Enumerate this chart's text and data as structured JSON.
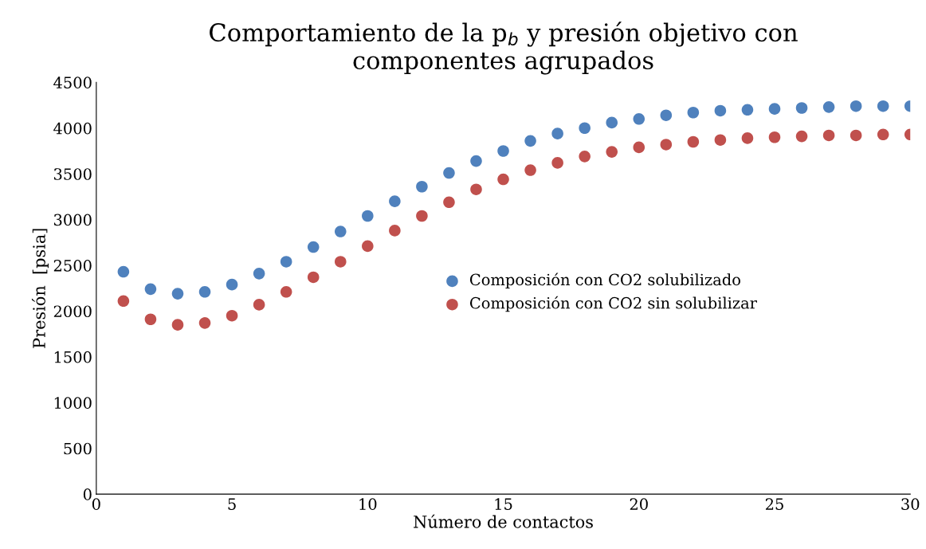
{
  "chart_data": {
    "type": "scatter",
    "title": "Comportamiento de la p$_{b}$ y presión objetivo con\ncomponentes agrupados",
    "xlabel": "Número de contactos",
    "ylabel": "Presión  [psia]",
    "x": [
      1,
      2,
      3,
      4,
      5,
      6,
      7,
      8,
      9,
      10,
      11,
      12,
      13,
      14,
      15,
      16,
      17,
      18,
      19,
      20,
      21,
      22,
      23,
      24,
      25,
      26,
      27,
      28,
      29,
      30
    ],
    "series": [
      {
        "name": "Composición con CO2 solubilizado",
        "color": "#4f81bd",
        "values": [
          2430,
          2240,
          2190,
          2210,
          2290,
          2410,
          2540,
          2700,
          2870,
          3040,
          3200,
          3360,
          3510,
          3640,
          3750,
          3860,
          3940,
          4000,
          4060,
          4100,
          4140,
          4170,
          4190,
          4200,
          4210,
          4220,
          4230,
          4240,
          4240,
          4240
        ]
      },
      {
        "name": "Composición con CO2 sin solubilizar",
        "color": "#c0504d",
        "values": [
          2110,
          1910,
          1850,
          1870,
          1950,
          2070,
          2210,
          2370,
          2540,
          2710,
          2880,
          3040,
          3190,
          3330,
          3440,
          3540,
          3620,
          3690,
          3740,
          3790,
          3820,
          3850,
          3870,
          3890,
          3900,
          3910,
          3920,
          3920,
          3930,
          3930
        ]
      }
    ],
    "xlim": [
      0,
      30
    ],
    "xticks": [
      0,
      5,
      10,
      15,
      20,
      25,
      30
    ],
    "ylim": [
      0,
      4500
    ],
    "yticks": [
      0,
      500,
      1000,
      1500,
      2000,
      2500,
      3000,
      3500,
      4000,
      4500
    ],
    "grid": false,
    "legend": "center",
    "marker": "circle"
  }
}
